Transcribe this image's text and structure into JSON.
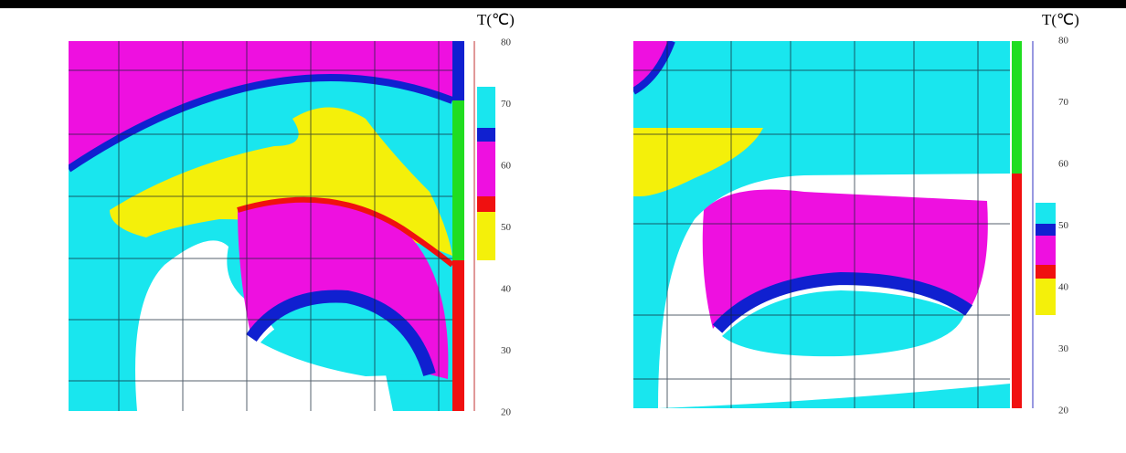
{
  "panels": [
    {
      "unit": "T(℃)",
      "ticks": [
        80,
        70,
        60,
        50,
        40,
        30,
        20
      ]
    },
    {
      "unit": "T(℃)",
      "ticks": [
        80,
        70,
        60,
        50,
        40,
        30,
        20
      ]
    }
  ]
}
